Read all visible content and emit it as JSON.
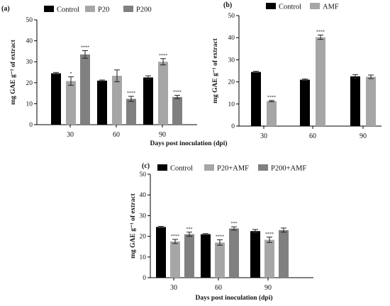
{
  "chart_data": [
    {
      "panel": "(a)",
      "type": "bar",
      "categories": [
        "30",
        "60",
        "90"
      ],
      "ylabel": "mg GAE g⁻¹ of extract",
      "ylim": [
        0,
        50
      ],
      "yticks": [
        0,
        10,
        20,
        30,
        40,
        50
      ],
      "series": [
        {
          "name": "Control",
          "color": "#000000",
          "values": [
            24.5,
            21.0,
            22.5
          ],
          "errors": [
            0.4,
            0.3,
            0.8
          ],
          "sig": [
            "",
            "",
            ""
          ]
        },
        {
          "name": "P20",
          "color": "#a6a6a6",
          "values": [
            20.8,
            23.3,
            30.0
          ],
          "errors": [
            2.0,
            2.8,
            1.5
          ],
          "sig": [
            "*",
            "",
            "****"
          ]
        },
        {
          "name": "P200",
          "color": "#808080",
          "values": [
            33.5,
            12.3,
            13.2
          ],
          "errors": [
            1.8,
            1.2,
            0.8
          ],
          "sig": [
            "****",
            "****",
            "****"
          ]
        }
      ]
    },
    {
      "panel": "(b)",
      "type": "bar",
      "categories": [
        "30",
        "60",
        "90"
      ],
      "ylabel": "mg GAE g⁻¹ of extract",
      "ylim": [
        0,
        50
      ],
      "yticks": [
        0,
        10,
        20,
        30,
        40,
        50
      ],
      "series": [
        {
          "name": "Control",
          "color": "#000000",
          "values": [
            24.5,
            21.0,
            22.5
          ],
          "errors": [
            0.3,
            0.3,
            0.8
          ],
          "sig": [
            "",
            "",
            ""
          ]
        },
        {
          "name": "AMF",
          "color": "#a6a6a6",
          "values": [
            11.3,
            40.2,
            22.3
          ],
          "errors": [
            0.3,
            1.0,
            0.8
          ],
          "sig": [
            "****",
            "****",
            ""
          ]
        }
      ]
    },
    {
      "panel": "(c)",
      "type": "bar",
      "categories": [
        "30",
        "60",
        "90"
      ],
      "ylabel": "mg GAE g⁻¹ of extract",
      "ylim": [
        0,
        50
      ],
      "yticks": [
        0,
        10,
        20,
        30,
        40,
        50
      ],
      "series": [
        {
          "name": "Control",
          "color": "#000000",
          "values": [
            24.5,
            21.0,
            22.5
          ],
          "errors": [
            0.3,
            0.3,
            0.8
          ],
          "sig": [
            "",
            "",
            ""
          ]
        },
        {
          "name": "P20+AMF",
          "color": "#a6a6a6",
          "values": [
            17.5,
            17.0,
            18.3
          ],
          "errors": [
            1.0,
            1.3,
            1.3
          ],
          "sig": [
            "****",
            "****",
            "****"
          ]
        },
        {
          "name": "P200+AMF",
          "color": "#808080",
          "values": [
            21.0,
            23.8,
            23.0
          ],
          "errors": [
            1.0,
            0.8,
            1.0
          ],
          "sig": [
            "***",
            "***",
            ""
          ]
        }
      ]
    }
  ],
  "shared_xlabel": "Days post inoculation (dpi)"
}
